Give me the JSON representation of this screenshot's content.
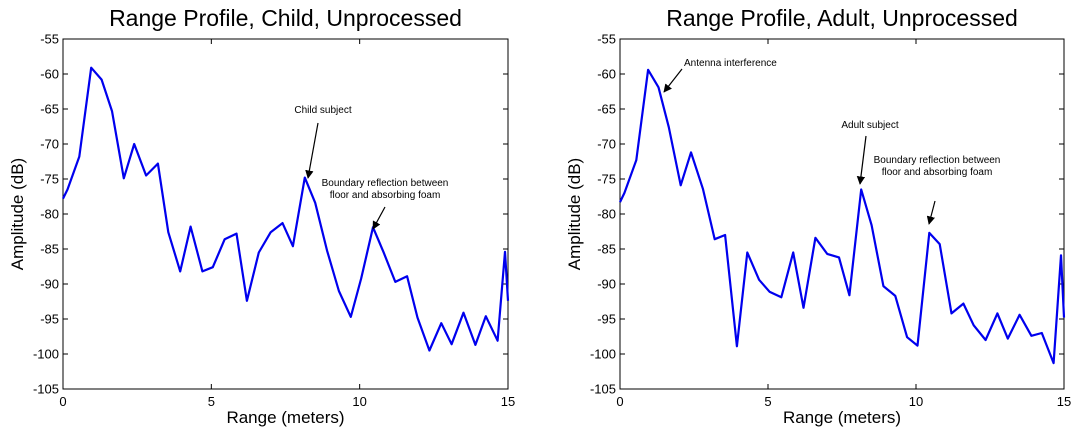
{
  "chart_data": [
    {
      "type": "line",
      "title": "Range Profile, Child, Unprocessed",
      "xlabel": "Range (meters)",
      "ylabel": "Amplitude  (dB)",
      "xlim": [
        0,
        15
      ],
      "ylim": [
        -105,
        -55
      ],
      "xticks": [
        0,
        5,
        10,
        15
      ],
      "yticks": [
        -55,
        -60,
        -65,
        -70,
        -75,
        -80,
        -85,
        -90,
        -95,
        -100,
        -105
      ],
      "grid": false,
      "series": [
        {
          "color": "#0000ee",
          "x": [
            0,
            0.15,
            0.55,
            0.95,
            1.3,
            1.65,
            2.05,
            2.4,
            2.8,
            3.2,
            3.55,
            3.95,
            4.3,
            4.7,
            5.05,
            5.45,
            5.85,
            6.2,
            6.6,
            7.0,
            7.4,
            7.75,
            8.15,
            8.5,
            8.9,
            9.3,
            9.7,
            10.05,
            10.45,
            10.8,
            11.2,
            11.6,
            11.95,
            12.35,
            12.75,
            13.1,
            13.5,
            13.9,
            14.25,
            14.65,
            14.9,
            15.0
          ],
          "y": [
            -77.8,
            -76.5,
            -71.8,
            -59.1,
            -60.8,
            -65.3,
            -74.9,
            -70.0,
            -74.5,
            -72.8,
            -82.6,
            -88.2,
            -81.8,
            -88.2,
            -87.6,
            -83.6,
            -82.8,
            -92.4,
            -85.5,
            -82.6,
            -81.3,
            -84.6,
            -74.8,
            -78.4,
            -85.2,
            -91.0,
            -94.7,
            -89.2,
            -81.9,
            -85.4,
            -89.7,
            -88.9,
            -94.8,
            -99.5,
            -95.6,
            -98.6,
            -94.1,
            -98.7,
            -94.6,
            -98.1,
            -85.4,
            -92.4
          ]
        }
      ],
      "annotations": [
        {
          "text": "Child subject",
          "points_to": [
            8.2,
            -75.5
          ]
        },
        {
          "text": "Boundary reflection between\nfloor and absorbing foam",
          "points_to": [
            10.5,
            -83.0
          ]
        }
      ]
    },
    {
      "type": "line",
      "title": "Range Profile, Adult, Unprocessed",
      "xlabel": "Range (meters)",
      "ylabel": "Amplitude  (dB)",
      "xlim": [
        0,
        15
      ],
      "ylim": [
        -105,
        -55
      ],
      "xticks": [
        0,
        5,
        10,
        15
      ],
      "yticks": [
        -55,
        -60,
        -65,
        -70,
        -75,
        -80,
        -85,
        -90,
        -95,
        -100,
        -105
      ],
      "grid": false,
      "series": [
        {
          "color": "#0000ee",
          "x": [
            0,
            0.15,
            0.55,
            0.95,
            1.3,
            1.65,
            2.05,
            2.4,
            2.8,
            3.2,
            3.55,
            3.95,
            4.3,
            4.7,
            5.05,
            5.45,
            5.85,
            6.2,
            6.6,
            7.0,
            7.4,
            7.75,
            8.15,
            8.5,
            8.9,
            9.3,
            9.7,
            10.05,
            10.45,
            10.8,
            11.2,
            11.6,
            11.95,
            12.35,
            12.75,
            13.1,
            13.5,
            13.9,
            14.25,
            14.65,
            14.9,
            15.0
          ],
          "y": [
            -78.3,
            -77.0,
            -72.3,
            -59.4,
            -61.9,
            -67.6,
            -75.9,
            -71.2,
            -76.4,
            -83.6,
            -83.0,
            -98.9,
            -85.5,
            -89.4,
            -91.1,
            -91.9,
            -85.5,
            -93.4,
            -83.4,
            -85.7,
            -86.2,
            -91.6,
            -76.5,
            -81.6,
            -90.3,
            -91.7,
            -97.6,
            -98.8,
            -82.7,
            -84.3,
            -94.2,
            -92.8,
            -95.9,
            -98.0,
            -94.2,
            -97.8,
            -94.4,
            -97.4,
            -97.0,
            -101.3,
            -85.9,
            -94.8
          ]
        }
      ],
      "annotations": [
        {
          "text": "Antenna interference",
          "points_to": [
            1.5,
            -63.0
          ]
        },
        {
          "text": "Adult subject",
          "points_to": [
            8.1,
            -77.0
          ]
        },
        {
          "text": "Boundary reflection between\nfloor and absorbing foam",
          "points_to": [
            10.4,
            -82.0
          ]
        }
      ]
    }
  ]
}
